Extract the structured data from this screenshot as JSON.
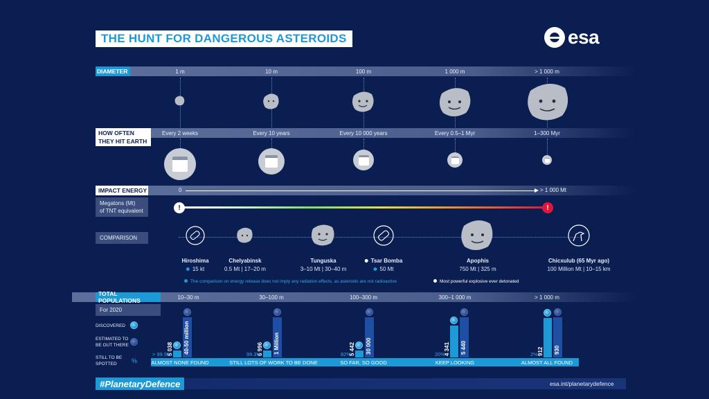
{
  "title": "THE HUNT FOR DANGEROUS ASTEROIDS",
  "logo": "esa",
  "diameter": {
    "label": "DIAMETER",
    "ticks": [
      "1 m",
      "10 m",
      "100 m",
      "1 000 m",
      "> 1 000 m"
    ]
  },
  "frequency": {
    "label_line1": "HOW OFTEN",
    "label_line2": "THEY HIT EARTH",
    "ticks": [
      "Every 2 weeks",
      "Every 10 years",
      "Every 10 000 years",
      "Every 0.5–1 Myr",
      "1–300 Myr"
    ]
  },
  "energy": {
    "label": "IMPACT ENERGY",
    "start": "0",
    "end": "> 1 000 Mt",
    "unit_line1": "Megatons (Mt)",
    "unit_line2": "of TNT equivalent",
    "warn_symbol": "!"
  },
  "comparison": {
    "label": "COMPARISON",
    "items": [
      {
        "name": "Hiroshima",
        "value": "15 kt",
        "marker": "blue-dot"
      },
      {
        "name": "Chelyabinsk",
        "value": "0.5 Mt | 17–20 m"
      },
      {
        "name": "Tunguska",
        "value": "3–10 Mt | 30–40 m"
      },
      {
        "name": "Tsar Bomba",
        "value": "50 Mt",
        "marker": "white-dot"
      },
      {
        "name": "Apophis",
        "value": "750 Mt | 325 m"
      },
      {
        "name": "Chicxulub (65 Myr ago)",
        "value": "100 Million Mt | 10–15 km"
      }
    ],
    "note_left": "The comparison on energy release does not imply any radiation effects, as asteroids are not radioactive",
    "note_right": "Most powerful explosive ever detonated"
  },
  "populations": {
    "label": "TOTAL POPULATIONS",
    "year": "For 2020",
    "legend_discovered": "DISCOVERED",
    "legend_estimated_1": "ESTIMATED TO",
    "legend_estimated_2": "BE OUT THERE",
    "legend_spotted_1": "STILL TO BE",
    "legend_spotted_2": "SPOTTED",
    "legend_pct": "%",
    "groups": [
      {
        "range": "10–30 m",
        "discovered": "5 038",
        "estimated": "40-50 million",
        "pct": "> 99.9%",
        "status": "ALMOST NONE FOUND",
        "disc_frac": 0.0001
      },
      {
        "range": "30–100 m",
        "discovered": "6 996",
        "estimated": "1 Million",
        "pct": "99.3%",
        "status": "STILL LOTS OF WORK TO BE DONE",
        "disc_frac": 0.007
      },
      {
        "range": "100–300 m",
        "discovered": "5 442",
        "estimated": "30 000",
        "pct": "82%",
        "status": "SO FAR, SO GOOD",
        "disc_frac": 0.18
      },
      {
        "range": "300–1 000 m",
        "discovered": "4 341",
        "estimated": "5 440",
        "pct": "20%",
        "status": "KEEP LOOKING",
        "disc_frac": 0.8
      },
      {
        "range": "> 1 000 m",
        "discovered": "912",
        "estimated": "930",
        "pct": "2%",
        "status": "ALMOST ALL FOUND",
        "disc_frac": 0.98
      }
    ]
  },
  "hashtag": "#PlanetaryDefence",
  "url": "esa.int/planetarydefence",
  "colors": {
    "accent": "#1d9ad6",
    "background": "#0a1e52",
    "warning": "#e0173c"
  }
}
